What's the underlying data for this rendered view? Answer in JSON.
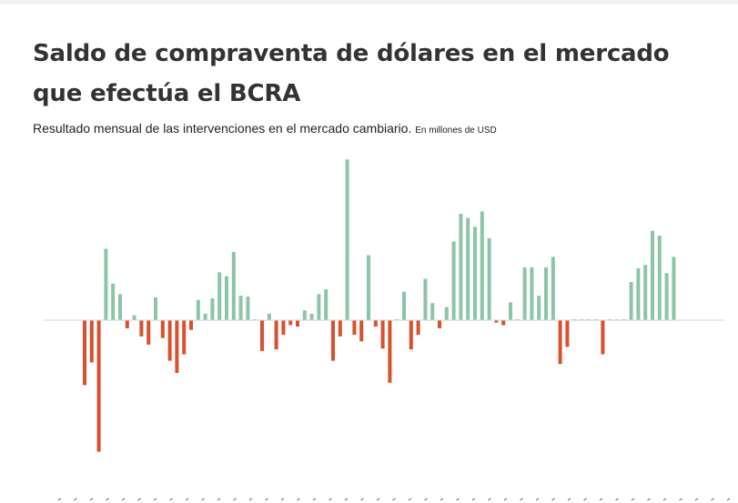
{
  "title": "Saldo de compraventa de dólares en el mercado que efectúa el BCRA",
  "subtitle": "Resultado mensual de las intervenciones en el mercado cambiario.",
  "unit": "En millones de USD",
  "colors": {
    "positive": "#8cc4a8",
    "negative": "#d9502d",
    "zero": "#8cc4a8",
    "baseline": "#d4d4d4"
  },
  "chart_data": {
    "type": "bar",
    "title": "Saldo de compraventa de dólares en el mercado que efectúa el BCRA",
    "subtitle": "Resultado mensual de las intervenciones en el mercado cambiario.",
    "unit": "En millones de USD",
    "ylim": [
      -1600,
      1950
    ],
    "grid": false,
    "legend": "none",
    "values": [
      -800,
      -520,
      -1620,
      880,
      450,
      320,
      -100,
      60,
      -200,
      -300,
      280,
      -220,
      -500,
      -650,
      -420,
      -120,
      250,
      80,
      270,
      590,
      540,
      840,
      300,
      290,
      10,
      -380,
      80,
      -360,
      -180,
      -60,
      -80,
      120,
      80,
      320,
      380,
      -500,
      -200,
      1980,
      -180,
      -260,
      800,
      -80,
      -350,
      -770,
      10,
      350,
      -360,
      -180,
      510,
      210,
      -100,
      160,
      970,
      1310,
      1260,
      1150,
      1340,
      1010,
      -30,
      -60,
      220,
      10,
      650,
      650,
      300,
      650,
      780,
      -540,
      -330,
      10,
      10,
      10,
      10,
      -420,
      10,
      10,
      10,
      470,
      640,
      680,
      1100,
      1040,
      580,
      780
    ],
    "x_tick_labels": [
      "",
      "",
      "",
      "",
      "",
      "",
      "",
      "",
      "",
      "",
      "",
      "",
      "",
      "",
      "",
      "",
      "",
      "",
      "",
      "",
      "",
      "",
      "",
      "",
      "",
      "",
      "",
      "",
      "",
      "",
      "",
      "",
      "",
      "",
      "",
      "",
      "",
      "",
      "",
      "",
      "",
      "",
      ""
    ]
  }
}
